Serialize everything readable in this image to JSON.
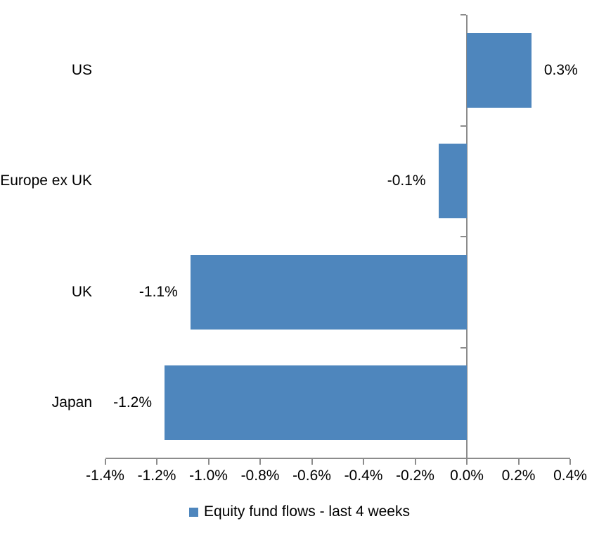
{
  "chart_data": {
    "type": "bar",
    "orientation": "horizontal",
    "title": "",
    "categories": [
      "US",
      "Europe ex UK",
      "UK",
      "Japan"
    ],
    "values": [
      0.3,
      -0.1,
      -1.1,
      -1.2
    ],
    "plotted_values": [
      0.25,
      -0.11,
      -1.07,
      -1.17
    ],
    "data_labels": [
      "0.3%",
      "-0.1%",
      "-1.1%",
      "-1.2%"
    ],
    "xlim": [
      -1.4,
      0.4
    ],
    "x_tick_labels": [
      "-1.4%",
      "-1.2%",
      "-1.0%",
      "-0.8%",
      "-0.6%",
      "-0.4%",
      "-0.2%",
      "0.0%",
      "0.2%",
      "0.4%"
    ],
    "grid": false,
    "legend": {
      "label": "Equity fund flows - last 4 weeks",
      "position": "bottom"
    },
    "colors": {
      "bar": "#4E86BD",
      "axis": "#8C8C8C",
      "text": "#000000",
      "background": "#FFFFFF"
    }
  }
}
